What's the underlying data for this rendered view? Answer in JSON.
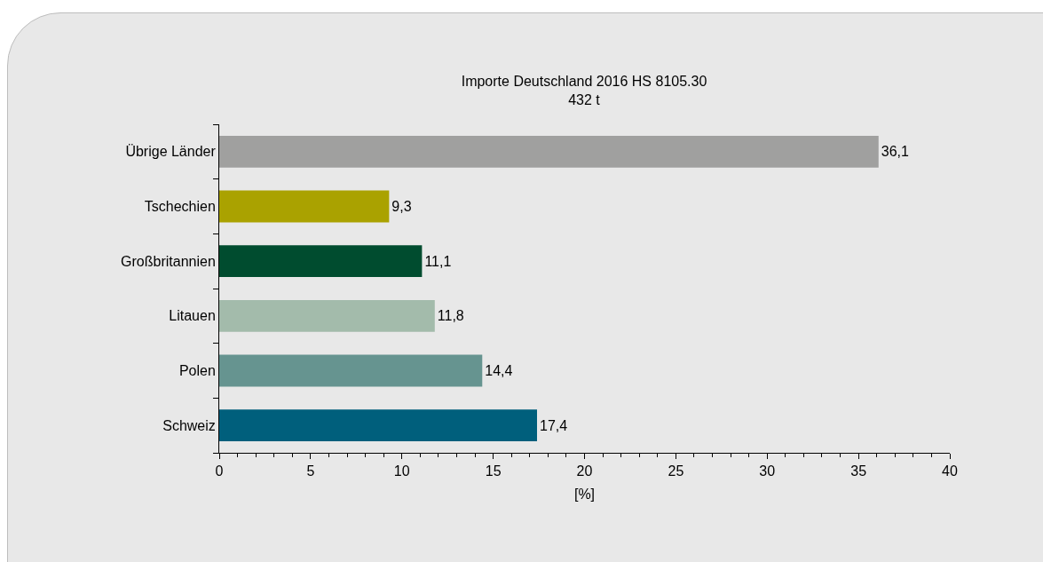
{
  "chart_data": {
    "type": "bar",
    "orientation": "horizontal",
    "title": "Importe Deutschland 2016 HS 8105.30",
    "subtitle": "432 t",
    "xlabel": "[%]",
    "categories": [
      "Übrige Länder",
      "Tschechien",
      "Großbritannien",
      "Litauen",
      "Polen",
      "Schweiz"
    ],
    "values": [
      36.1,
      9.3,
      11.1,
      11.8,
      14.4,
      17.4
    ],
    "value_labels": [
      "36,1",
      "9,3",
      "11,1",
      "11,8",
      "14,4",
      "17,4"
    ],
    "colors": [
      "#a0a09f",
      "#aaa200",
      "#004c2f",
      "#a3bbab",
      "#669490",
      "#005f7c"
    ],
    "xlim": [
      0,
      40
    ],
    "xticks": [
      0,
      5,
      10,
      15,
      20,
      25,
      30,
      35,
      40
    ]
  }
}
